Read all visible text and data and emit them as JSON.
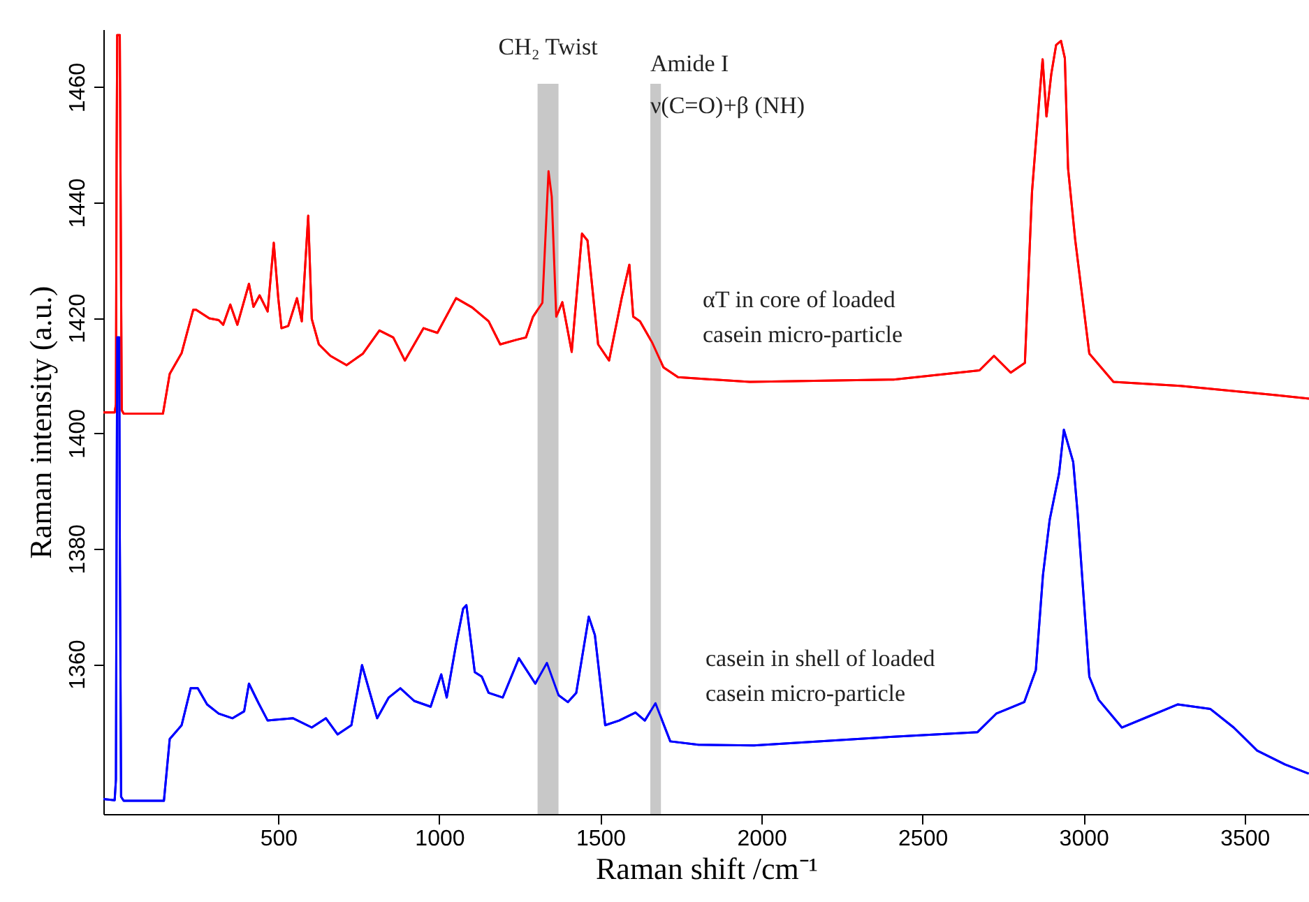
{
  "chart_data": {
    "type": "line",
    "xlabel": "Raman shift /cm⁻¹",
    "ylabel": "Raman intensity (a.u.)",
    "xlim": [
      -43,
      3700
    ],
    "ylim": [
      1334,
      1470
    ],
    "xticks": [
      500,
      1000,
      1500,
      2000,
      2500,
      3000,
      3500
    ],
    "yticks": [
      1360,
      1380,
      1400,
      1420,
      1440,
      1460
    ],
    "grid": false,
    "legend": false,
    "marker": "none",
    "line_style": "solid",
    "bands": [
      {
        "axis": "x",
        "from": 1305,
        "to": 1370,
        "label": "CH₂ Twist",
        "color": "#c8c8c8"
      },
      {
        "axis": "x",
        "from": 1655,
        "to": 1688,
        "label": "Amide I\nν(C=O)+β (NH)",
        "color": "#c8c8c8"
      }
    ],
    "series": [
      {
        "name": "αT in  core of loaded\ncasein micro-particle",
        "color": "#ff0000",
        "x": [
          -43,
          -8,
          -4,
          -2,
          0,
          8,
          10,
          14,
          20,
          142,
          163,
          200,
          236,
          245,
          286,
          315,
          329,
          351,
          373,
          409,
          423,
          442,
          467,
          486,
          500,
          510,
          531,
          558,
          573,
          593,
          604,
          626,
          662,
          712,
          763,
          814,
          857,
          893,
          951,
          994,
          1052,
          1102,
          1153,
          1189,
          1240,
          1269,
          1291,
          1320,
          1339,
          1349,
          1363,
          1382,
          1411,
          1443,
          1460,
          1493,
          1527,
          1566,
          1590,
          1602,
          1623,
          1660,
          1696,
          1741,
          1964,
          2410,
          2677,
          2722,
          2774,
          2818,
          2840,
          2863,
          2873,
          2885,
          2900,
          2915,
          2930,
          2942,
          2952,
          2974,
          3018,
          3093,
          3301,
          3598,
          3700
        ],
        "values": [
          1403.6,
          1403.6,
          1405,
          1447,
          1469,
          1469,
          1447,
          1404,
          1403.4,
          1403.4,
          1410.3,
          1413.9,
          1421.4,
          1421.4,
          1419.9,
          1419.6,
          1418.8,
          1422.3,
          1418.8,
          1425.9,
          1421.9,
          1423.9,
          1421.1,
          1433,
          1423.4,
          1418.2,
          1418.6,
          1423.4,
          1419.4,
          1437.7,
          1419.8,
          1415.4,
          1413.4,
          1411.8,
          1413.8,
          1417.8,
          1416.6,
          1412.6,
          1418.2,
          1417.4,
          1423.4,
          1421.8,
          1419.4,
          1415.4,
          1416.2,
          1416.6,
          1420.2,
          1422.6,
          1445.4,
          1441,
          1420.2,
          1422.7,
          1414.1,
          1434.6,
          1433.4,
          1415.4,
          1412.6,
          1423.4,
          1429.2,
          1420.2,
          1419.4,
          1415.8,
          1411.4,
          1409.7,
          1408.9,
          1409.3,
          1410.9,
          1413.4,
          1410.5,
          1412.2,
          1441.8,
          1458.2,
          1464.8,
          1454.9,
          1462.3,
          1467.3,
          1468,
          1465,
          1445.9,
          1433.6,
          1413.8,
          1408.9,
          1408.2,
          1406.6,
          1406
        ]
      },
      {
        "name": "casein in  shell  of loaded\ncasein micro-particle",
        "color": "#0000ff",
        "x": [
          -43,
          -8,
          -4,
          -2,
          0,
          6,
          8,
          12,
          20,
          145,
          163,
          200,
          228,
          250,
          279,
          315,
          358,
          394,
          409,
          438,
          467,
          546,
          604,
          648,
          684,
          727,
          760,
          807,
          843,
          879,
          922,
          973,
          1006,
          1023,
          1052,
          1074,
          1084,
          1110,
          1132,
          1153,
          1197,
          1247,
          1298,
          1334,
          1370,
          1399,
          1425,
          1464,
          1483,
          1515,
          1558,
          1609,
          1638,
          1671,
          1717,
          1804,
          1977,
          2411,
          2671,
          2729,
          2816,
          2852,
          2874,
          2895,
          2924,
          2939,
          2968,
          2982,
          3018,
          3047,
          3119,
          3206,
          3293,
          3394,
          3466,
          3539,
          3625,
          3699
        ],
        "values": [
          1336.6,
          1336.4,
          1340,
          1382,
          1416.6,
          1416.6,
          1382,
          1337,
          1336.3,
          1336.3,
          1347,
          1349.4,
          1355.8,
          1355.8,
          1353,
          1351.4,
          1350.6,
          1351.8,
          1356.6,
          1353.3,
          1350.2,
          1350.6,
          1349,
          1350.6,
          1347.8,
          1349.4,
          1359.8,
          1350.6,
          1354.2,
          1355.8,
          1353.6,
          1352.6,
          1358.2,
          1354.2,
          1363.4,
          1369.6,
          1370.2,
          1358.6,
          1357.8,
          1355,
          1354.2,
          1361,
          1356.6,
          1360.2,
          1354.6,
          1353.4,
          1355,
          1368.2,
          1365,
          1349.4,
          1350.2,
          1351.6,
          1350.2,
          1353.2,
          1346.6,
          1346,
          1345.9,
          1347.4,
          1348.2,
          1351.4,
          1353.4,
          1359,
          1375.4,
          1385,
          1393,
          1400.6,
          1395,
          1385.9,
          1357.8,
          1353.8,
          1349,
          1351,
          1353,
          1352.2,
          1349,
          1345,
          1342.6,
          1341
        ]
      }
    ]
  }
}
